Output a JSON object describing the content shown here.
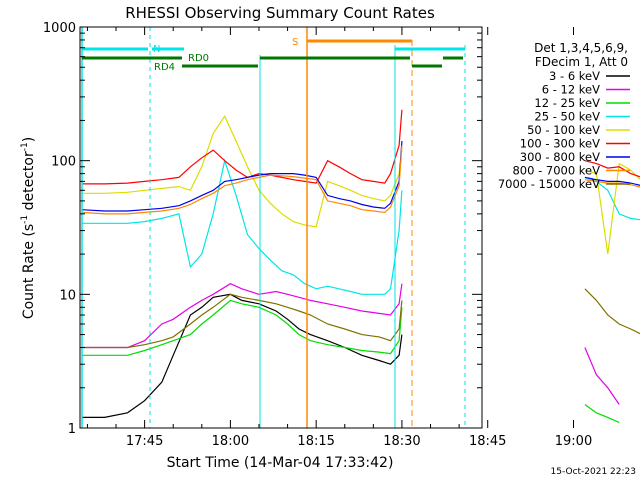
{
  "chart_data": {
    "type": "line",
    "title": "RHESSI Observing Summary Count Rates",
    "xlabel": "Start Time (14-Mar-04 17:33:42)",
    "ylabel_main": "Count Rate (s",
    "ylabel_sup1": "-1",
    "ylabel_mid": " detector",
    "ylabel_sup2": "-1",
    "ylabel_end": ")",
    "y_scale": "log",
    "ylim": [
      1,
      1000
    ],
    "xlim_min": [
      1053.7,
      1124
    ],
    "x_tick_labels": [
      "17:45",
      "18:00",
      "18:15",
      "18:30",
      "18:45",
      "19:00"
    ],
    "x_tick_values": [
      1065,
      1080,
      1095,
      1110,
      1125,
      1140
    ],
    "y_tick_labels": [
      "1",
      "10",
      "100",
      "1000"
    ],
    "legend_header": [
      "Det 1,3,4,5,6,9,",
      "FDecim 1, Att 0"
    ],
    "flag_labels": {
      "n": "N",
      "rd0": "RD0",
      "rd4": "RD4",
      "s": "S"
    },
    "timestamp": "15-Oct-2021 22:23",
    "series": [
      {
        "name": "3 - 6 keV",
        "color": "#000000",
        "x": [
          1054,
          1058,
          1062,
          1065,
          1068,
          1070,
          1073,
          1075,
          1077,
          1080,
          1082,
          1085,
          1088,
          1090,
          1092,
          1094,
          1097,
          1100,
          1103,
          1106,
          1108,
          1109.5,
          1110
        ],
        "y": [
          1.2,
          1.2,
          1.3,
          1.6,
          2.2,
          3.5,
          7,
          8,
          9.5,
          10,
          9,
          8.5,
          7.5,
          6.5,
          5.5,
          5,
          4.5,
          4,
          3.5,
          3.2,
          3,
          3.5,
          5
        ]
      },
      {
        "name": "6 - 12 keV",
        "color": "#e600e6",
        "x": [
          1054,
          1058,
          1062,
          1065,
          1068,
          1070,
          1073,
          1075,
          1077,
          1080,
          1082,
          1085,
          1088,
          1090,
          1092,
          1094,
          1097,
          1100,
          1103,
          1106,
          1108,
          1109.5,
          1110,
          1142,
          1144,
          1146,
          1148
        ],
        "y": [
          4,
          4,
          4,
          4.5,
          6,
          6.5,
          8,
          9,
          10,
          12,
          11,
          10,
          10.5,
          10,
          9.5,
          9,
          8.5,
          8,
          7.5,
          7.2,
          7,
          8.5,
          12,
          4,
          2.5,
          2,
          1.5
        ]
      },
      {
        "name": "12 - 25 keV",
        "color": "#00dd00",
        "x": [
          1054,
          1058,
          1062,
          1065,
          1068,
          1070,
          1073,
          1075,
          1077,
          1080,
          1082,
          1085,
          1088,
          1090,
          1092,
          1094,
          1097,
          1100,
          1103,
          1106,
          1108,
          1109.5,
          1110,
          1142,
          1144,
          1146,
          1148
        ],
        "y": [
          3.5,
          3.5,
          3.5,
          3.8,
          4.2,
          4.5,
          5,
          6,
          7,
          9,
          8.5,
          8,
          7,
          6,
          5,
          4.5,
          4.2,
          4,
          3.8,
          3.7,
          3.6,
          4.5,
          8,
          1.5,
          1.3,
          1.2,
          1.1
        ]
      },
      {
        "name": "25 - 50 keV",
        "color": "#00e5e5",
        "x": [
          1054,
          1058,
          1062,
          1065,
          1068,
          1071,
          1073,
          1075,
          1077,
          1079,
          1081,
          1083,
          1085,
          1087,
          1089,
          1091,
          1093,
          1095,
          1097,
          1099,
          1101,
          1103,
          1105,
          1107,
          1108,
          1109.5,
          1110,
          1142,
          1144,
          1146,
          1148,
          1150,
          1152
        ],
        "y": [
          34,
          34,
          34,
          35,
          37,
          40,
          16,
          20,
          40,
          100,
          55,
          28,
          22,
          18,
          15,
          14,
          12,
          11,
          11.5,
          11,
          10.5,
          10,
          10,
          10,
          11,
          30,
          60,
          75,
          70,
          60,
          40,
          37,
          36
        ]
      },
      {
        "name": "50 - 100 keV",
        "color": "#dddd00",
        "x": [
          1054,
          1058,
          1062,
          1065,
          1068,
          1071,
          1073,
          1075,
          1077,
          1079,
          1081,
          1083,
          1085,
          1087,
          1089,
          1091,
          1093,
          1095,
          1097,
          1099,
          1101,
          1103,
          1105,
          1107,
          1108,
          1109.5,
          1110,
          1142,
          1144,
          1146,
          1148,
          1150,
          1152
        ],
        "y": [
          57,
          57,
          58,
          60,
          62,
          64,
          60,
          90,
          160,
          215,
          140,
          90,
          60,
          48,
          40,
          35,
          33,
          32,
          70,
          65,
          60,
          55,
          52,
          50,
          55,
          80,
          120,
          85,
          80,
          20,
          95,
          85,
          70
        ]
      },
      {
        "name": "100 - 300 keV",
        "color": "#ff0000",
        "x": [
          1054,
          1058,
          1062,
          1065,
          1068,
          1071,
          1073,
          1075,
          1077,
          1079,
          1081,
          1083,
          1085,
          1087,
          1089,
          1091,
          1093,
          1095,
          1097,
          1099,
          1101,
          1103,
          1105,
          1107,
          1108,
          1109.5,
          1110,
          1142,
          1144,
          1146,
          1148,
          1150,
          1152
        ],
        "y": [
          67,
          67,
          68,
          70,
          72,
          75,
          90,
          105,
          120,
          100,
          85,
          75,
          80,
          78,
          75,
          72,
          70,
          68,
          100,
          90,
          80,
          72,
          70,
          68,
          80,
          130,
          240,
          100,
          95,
          88,
          90,
          80,
          75
        ]
      },
      {
        "name": "300 - 800 keV",
        "color": "#0000ee",
        "x": [
          1054,
          1058,
          1062,
          1065,
          1068,
          1071,
          1073,
          1075,
          1077,
          1079,
          1081,
          1083,
          1085,
          1087,
          1089,
          1091,
          1093,
          1095,
          1097,
          1099,
          1101,
          1103,
          1105,
          1107,
          1108,
          1109.5,
          1110,
          1142,
          1144,
          1146,
          1148,
          1150,
          1152
        ],
        "y": [
          43,
          42,
          42,
          43,
          44,
          46,
          50,
          55,
          60,
          70,
          72,
          75,
          78,
          80,
          80,
          80,
          78,
          75,
          55,
          52,
          50,
          47,
          45,
          44,
          48,
          70,
          140,
          75,
          72,
          70,
          70,
          68,
          65
        ]
      },
      {
        "name": "800 - 7000 keV",
        "color": "#ff8800",
        "x": [
          1054,
          1058,
          1062,
          1065,
          1068,
          1071,
          1073,
          1075,
          1077,
          1079,
          1081,
          1083,
          1085,
          1087,
          1089,
          1091,
          1093,
          1095,
          1097,
          1099,
          1101,
          1103,
          1105,
          1107,
          1108,
          1109.5,
          1110,
          1142,
          1144,
          1146,
          1148,
          1150,
          1152
        ],
        "y": [
          41,
          40,
          40,
          41,
          42,
          44,
          47,
          52,
          57,
          65,
          68,
          72,
          75,
          78,
          77,
          76,
          74,
          72,
          50,
          48,
          46,
          43,
          42,
          41,
          45,
          65,
          130,
          72,
          70,
          68,
          68,
          66,
          63
        ]
      },
      {
        "name": "7000 - 15000 keV",
        "color": "#807000",
        "x": [
          1054,
          1058,
          1062,
          1065,
          1068,
          1070,
          1073,
          1075,
          1077,
          1080,
          1082,
          1085,
          1088,
          1090,
          1092,
          1094,
          1097,
          1100,
          1103,
          1106,
          1108,
          1109.5,
          1110,
          1142,
          1144,
          1146,
          1148,
          1150,
          1152
        ],
        "y": [
          4,
          4,
          4,
          4.2,
          4.5,
          4.8,
          6,
          7,
          8,
          10,
          9.5,
          9,
          8.5,
          8,
          7.5,
          7,
          6,
          5.5,
          5,
          4.8,
          4.5,
          5.5,
          9,
          11,
          9,
          7,
          6,
          5.5,
          5
        ]
      }
    ]
  }
}
